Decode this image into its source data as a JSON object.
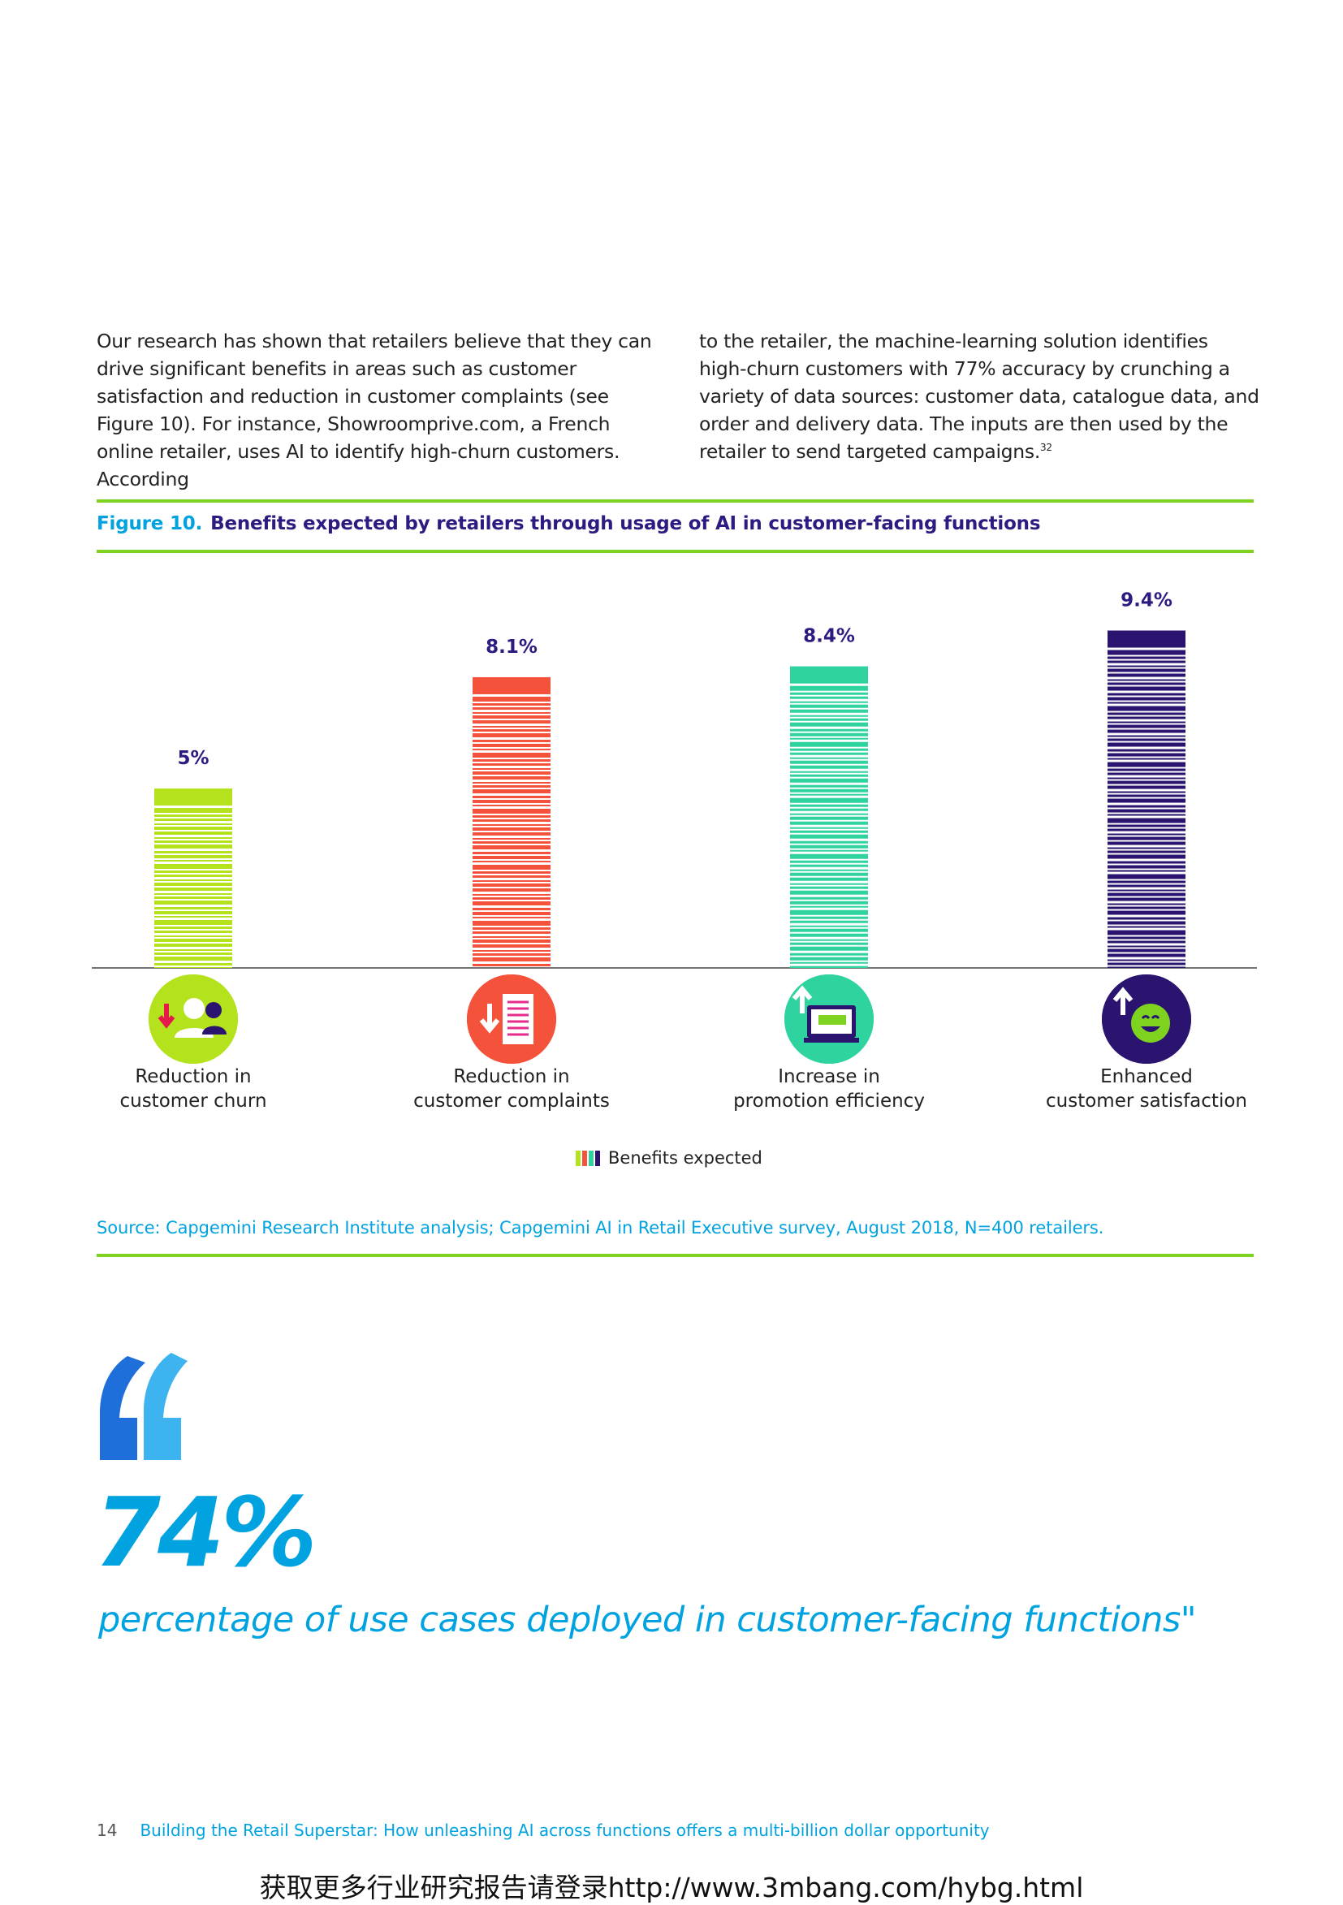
{
  "body_text": {
    "left_column": "Our research has shown that retailers believe that they can drive significant benefits in areas such as customer satisfaction and reduction in customer complaints (see Figure 10). For instance, Showroomprive.com, a French online retailer, uses AI to identify high-churn customers. According",
    "right_column": "to the retailer, the machine-learning solution identifies high-churn customers with 77% accuracy by crunching a variety of data sources: customer data, catalogue data, and order and delivery data. The inputs are then used by the retailer to send targeted campaigns.",
    "footnote_ref": "32"
  },
  "figure": {
    "number": "Figure 10.",
    "title": "Benefits expected by retailers through usage of AI in customer-facing functions"
  },
  "chart_data": {
    "type": "bar",
    "categories": [
      "Reduction in\ncustomer churn",
      "Reduction in\ncustomer complaints",
      "Increase in\npromotion efficiency",
      "Enhanced\ncustomer satisfaction"
    ],
    "series": [
      {
        "name": "Benefits expected",
        "values": [
          5,
          8.1,
          8.4,
          9.4
        ]
      }
    ],
    "value_labels": [
      "5%",
      "8.1%",
      "8.4%",
      "9.4%"
    ],
    "bar_colors": [
      "#b4e31e",
      "#f4523b",
      "#2fd3a0",
      "#2b1470"
    ],
    "icons": [
      "people-arrow-down-icon",
      "document-arrow-down-icon",
      "screen-arrow-up-icon",
      "smiley-arrow-up-icon"
    ],
    "ylim": [
      0,
      10
    ],
    "grid": false,
    "legend_position": "bottom-center"
  },
  "legend": {
    "label": "Benefits expected",
    "swatch_colors": [
      "#b4e31e",
      "#f4523b",
      "#2fd3a0",
      "#2b1470"
    ]
  },
  "source": "Source: Capgemini Research Institute analysis; Capgemini AI in Retail Executive survey, August 2018, N=400 retailers.",
  "quote": {
    "stat": "74%",
    "caption": "percentage of use cases deployed in customer-facing functions\""
  },
  "footer": {
    "page_number": "14",
    "report_title": "Building the Retail Superstar: How unleashing AI across functions offers a multi-billion dollar opportunity"
  },
  "watermark": "获取更多行业研究报告请登录http://www.3mbang.com/hybg.html",
  "colors": {
    "accent_blue": "#00a3e0",
    "rule_green": "#7ed321",
    "title_purple": "#2e1a80"
  }
}
